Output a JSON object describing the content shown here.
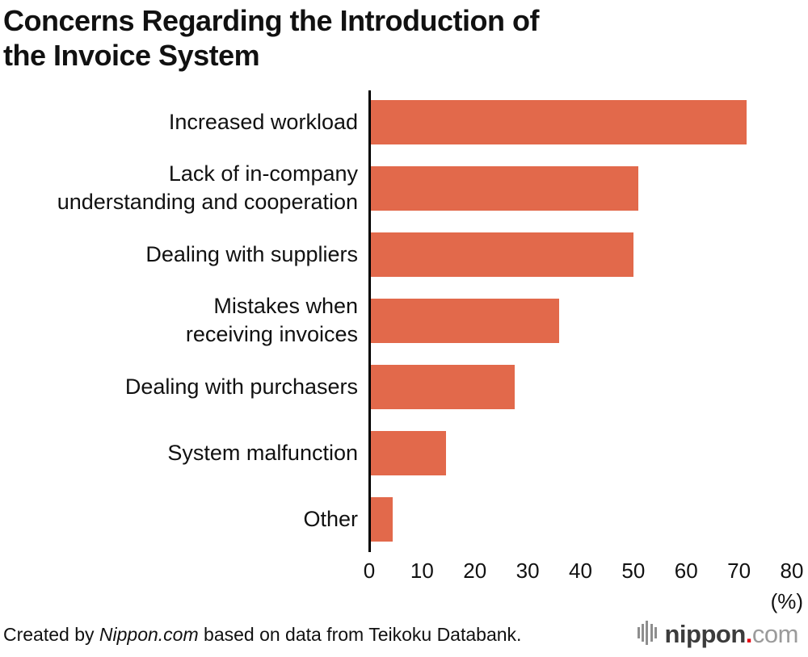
{
  "title": "Concerns Regarding the Introduction of\nthe Invoice System",
  "chart_data": {
    "type": "bar",
    "orientation": "horizontal",
    "title": "Concerns Regarding the Introduction of the Invoice System",
    "categories": [
      "Increased workload",
      "Lack of in-company\nunderstanding and cooperation",
      "Dealing with suppliers",
      "Mistakes when\nreceiving invoices",
      "Dealing with purchasers",
      "System malfunction",
      "Other"
    ],
    "values": [
      71.5,
      51.0,
      50.0,
      36.0,
      27.5,
      14.5,
      4.5
    ],
    "xlabel": "(%)",
    "ylabel": "",
    "xlim": [
      0,
      80
    ],
    "x_ticks": [
      0,
      10,
      20,
      30,
      40,
      50,
      60,
      70,
      80
    ],
    "grid": false,
    "legend": false,
    "bar_color": "#e2694b",
    "axis_color": "#000000"
  },
  "footer": {
    "credit_prefix": "Created by ",
    "credit_source": "Nippon.com",
    "credit_suffix": " based on data from Teikoku Databank.",
    "logo": {
      "main": "nippon",
      "dot": ".",
      "suffix": "com",
      "icon": "equalizer-bars-icon",
      "icon_color": "#8e8e8e"
    }
  }
}
